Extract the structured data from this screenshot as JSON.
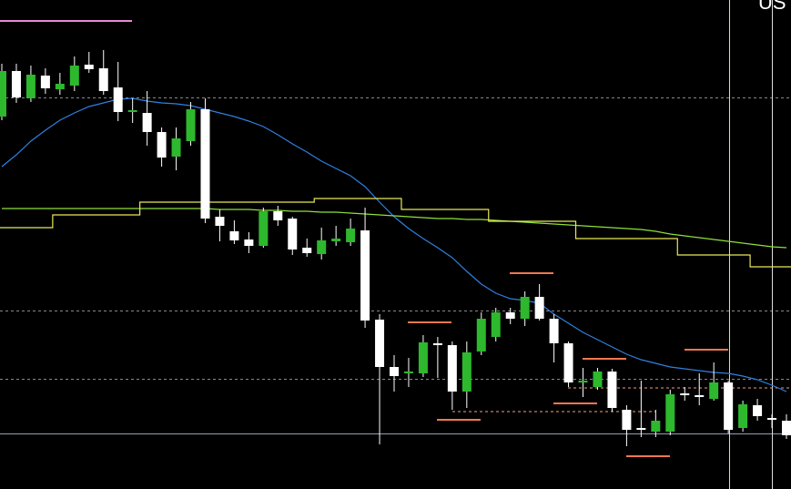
{
  "chart_data": {
    "type": "candlestick",
    "label": "US",
    "categories": [
      null,
      null,
      null,
      null,
      null,
      null,
      null,
      null,
      null,
      null,
      null,
      null,
      null,
      null,
      null,
      null,
      null,
      null,
      null,
      null,
      null,
      null,
      null,
      null,
      null,
      null,
      null,
      null,
      null,
      null,
      null,
      null,
      null,
      null,
      null,
      null,
      null,
      null,
      null,
      null,
      null,
      null,
      null,
      null,
      null,
      null,
      null,
      null,
      null,
      null,
      null,
      null,
      null,
      null,
      null
    ],
    "open": [
      409,
      459,
      429,
      454,
      439,
      443,
      466,
      462,
      441,
      414,
      413,
      392,
      365,
      382,
      417,
      299,
      283,
      274,
      267,
      305,
      297,
      265,
      258,
      272,
      271,
      284,
      186,
      134,
      127,
      127,
      160,
      158,
      107,
      151,
      167,
      194,
      187,
      211,
      187,
      160,
      117,
      112,
      129,
      87,
      67,
      63,
      63,
      105,
      103,
      99,
      117,
      67,
      92,
      78,
      75
    ],
    "high": [
      467,
      467,
      465,
      462,
      457,
      475,
      480,
      482,
      469,
      429,
      437,
      397,
      397,
      425,
      429,
      307,
      295,
      282,
      309,
      311,
      299,
      275,
      287,
      289,
      297,
      309,
      192,
      147,
      144,
      169,
      167,
      162,
      162,
      194,
      199,
      199,
      217,
      225,
      192,
      162,
      133,
      133,
      132,
      92,
      119,
      87,
      109,
      112,
      127,
      139,
      119,
      97,
      99,
      82,
      82
    ],
    "low": [
      405,
      424,
      425,
      434,
      433,
      437,
      457,
      433,
      404,
      402,
      377,
      354,
      350,
      377,
      292,
      272,
      269,
      259,
      265,
      289,
      257,
      255,
      252,
      267,
      267,
      177,
      49,
      107,
      112,
      123,
      122,
      87,
      89,
      147,
      162,
      181,
      179,
      185,
      139,
      112,
      101,
      109,
      85,
      47,
      57,
      57,
      59,
      97,
      92,
      97,
      61,
      63,
      75,
      67,
      55
    ],
    "close": [
      459,
      430,
      455,
      440,
      445,
      465,
      461,
      437,
      414,
      416,
      392,
      364,
      385,
      417,
      297,
      289,
      273,
      267,
      305,
      295,
      263,
      259,
      273,
      275,
      286,
      185,
      134,
      124,
      129,
      161,
      158,
      107,
      150,
      187,
      194,
      187,
      211,
      187,
      160,
      117,
      119,
      129,
      89,
      65,
      65,
      75,
      104,
      103,
      101,
      117,
      65,
      93,
      80,
      76,
      59
    ],
    "up_color": "#2db82d",
    "down_color": "#ffffff",
    "overlays": [
      {
        "style": "line",
        "color": "#2f80e0",
        "values": [
          354,
          367,
          382,
          394,
          405,
          413,
          420,
          424,
          428,
          429,
          426,
          424,
          423,
          421,
          417,
          413,
          409,
          404,
          398,
          389,
          379,
          370,
          360,
          352,
          344,
          332,
          315,
          299,
          286,
          275,
          265,
          254,
          239,
          225,
          215,
          209,
          207,
          204,
          192,
          182,
          172,
          164,
          156,
          148,
          142,
          138,
          134,
          132,
          130,
          128,
          127,
          124,
          120,
          114,
          107
        ]
      },
      {
        "style": "line",
        "color": "#8ee03a",
        "values": [
          308,
          308,
          308,
          308,
          308,
          308,
          308,
          308,
          308,
          308,
          308,
          308,
          308,
          308,
          308,
          307,
          307,
          307,
          306,
          306,
          305,
          305,
          304,
          304,
          303,
          302,
          301,
          300,
          299,
          298,
          297,
          297,
          296,
          296,
          295,
          294,
          293,
          292,
          291,
          290,
          289,
          288,
          287,
          286,
          285,
          283,
          280,
          278,
          276,
          274,
          272,
          270,
          268,
          266,
          265
        ]
      },
      {
        "style": "step",
        "color": "#e8e85a",
        "values": [
          287,
          287,
          287,
          287,
          301,
          301,
          301,
          301,
          301,
          301,
          315,
          315,
          315,
          315,
          315,
          315,
          315,
          315,
          315,
          315,
          315,
          315,
          319,
          319,
          319,
          319,
          319,
          319,
          307,
          307,
          307,
          307,
          307,
          307,
          294,
          294,
          294,
          294,
          294,
          294,
          275,
          275,
          275,
          275,
          275,
          275,
          275,
          257,
          257,
          257,
          257,
          257,
          244,
          244,
          244
        ]
      }
    ],
    "ylim": [
      0,
      537
    ]
  }
}
